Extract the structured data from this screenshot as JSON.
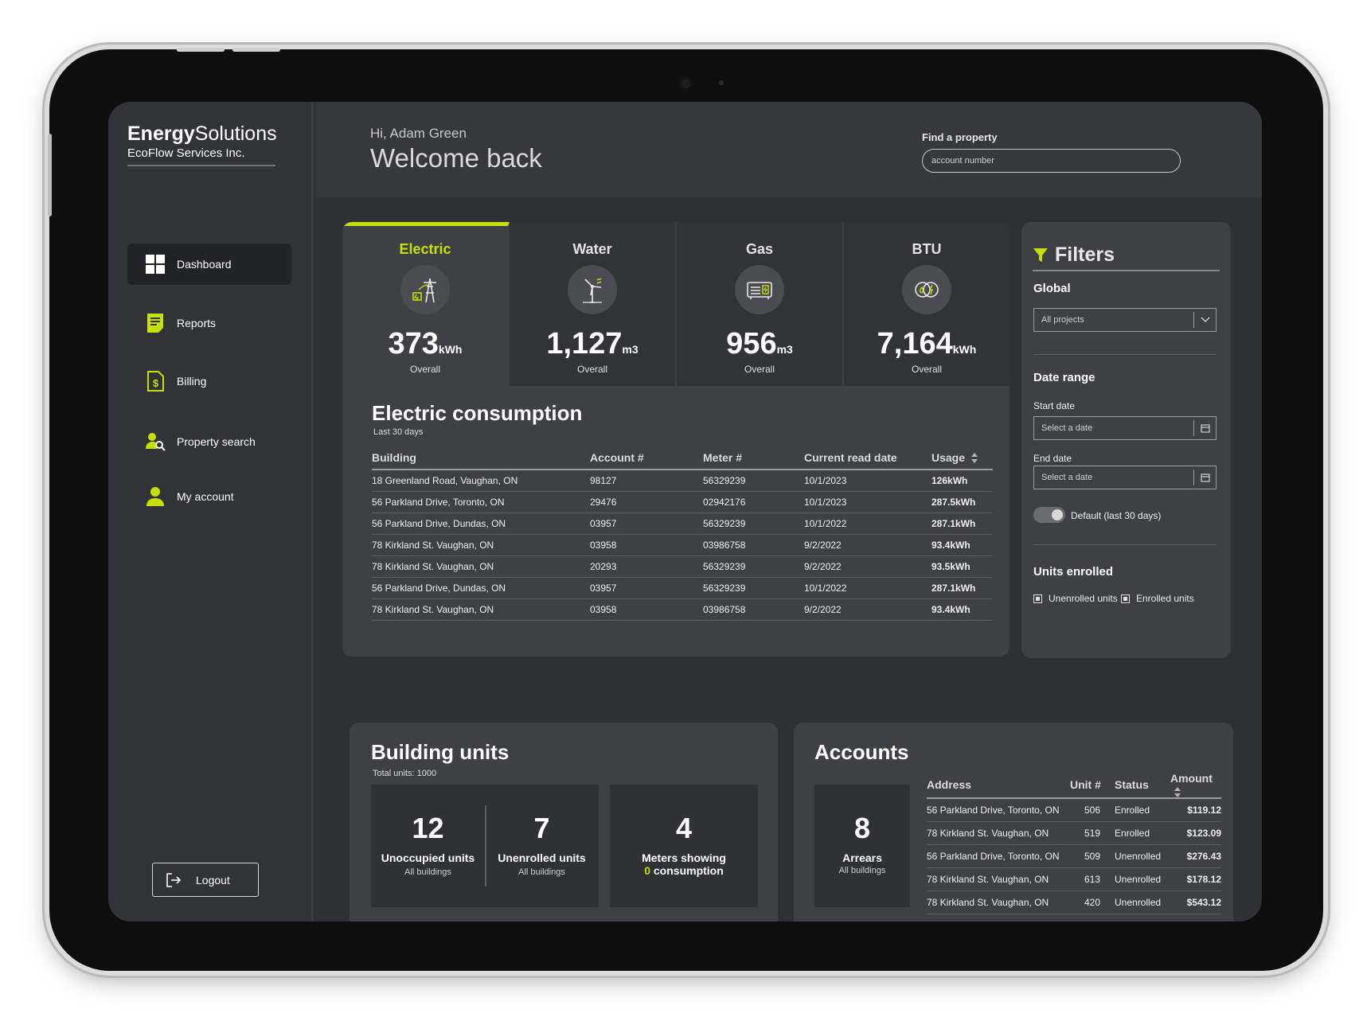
{
  "brand": {
    "name_bold": "Energy",
    "name_rest": "Solutions",
    "company": "EcoFlow Services Inc."
  },
  "nav": [
    {
      "label": "Dashboard",
      "icon": "dashboard-grid-icon"
    },
    {
      "label": "Reports",
      "icon": "report-document-icon"
    },
    {
      "label": "Billing",
      "icon": "billing-document-icon"
    },
    {
      "label": "Property search",
      "icon": "property-search-icon"
    },
    {
      "label": "My account",
      "icon": "user-account-icon"
    }
  ],
  "logout_label": "Logout",
  "header": {
    "greeting": "Hi, Adam Green",
    "welcome": "Welcome back",
    "find_label": "Find a property",
    "find_placeholder": "account number"
  },
  "utilities": [
    {
      "name": "Electric",
      "value": "373",
      "unit": "kWh",
      "caption": "Overall",
      "icon": "power-tower-icon"
    },
    {
      "name": "Water",
      "value": "1,127",
      "unit": "m3",
      "caption": "Overall",
      "icon": "water-turbine-icon"
    },
    {
      "name": "Gas",
      "value": "956",
      "unit": "m3",
      "caption": "Overall",
      "icon": "gas-meter-icon"
    },
    {
      "name": "BTU",
      "value": "7,164",
      "unit": "kWh",
      "caption": "Overall",
      "icon": "btu-energy-icon"
    }
  ],
  "consumption": {
    "title": "Electric consumption",
    "subtitle": "Last 30 days",
    "columns": [
      "Building",
      "Account #",
      "Meter #",
      "Current read date",
      "Usage"
    ],
    "rows": [
      [
        "18 Greenland Road, Vaughan, ON",
        "98127",
        "56329239",
        "10/1/2023",
        "126kWh"
      ],
      [
        "56 Parkland Drive, Toronto, ON",
        "29476",
        "02942176",
        "10/1/2023",
        "287.5kWh"
      ],
      [
        "56 Parkland Drive, Dundas, ON",
        "03957",
        "56329239",
        "10/1/2022",
        "287.1kWh"
      ],
      [
        "78 Kirkland St. Vaughan, ON",
        "03958",
        "03986758",
        "9/2/2022",
        "93.4kWh"
      ],
      [
        "78 Kirkland St. Vaughan, ON",
        "20293",
        "56329239",
        "9/2/2022",
        "93.5kWh"
      ],
      [
        "56 Parkland Drive, Dundas, ON",
        "03957",
        "56329239",
        "10/1/2022",
        "287.1kWh"
      ],
      [
        "78 Kirkland St. Vaughan, ON",
        "03958",
        "03986758",
        "9/2/2022",
        "93.4kWh"
      ]
    ]
  },
  "filters": {
    "title": "Filters",
    "global_label": "Global",
    "global_value": "All projects",
    "date_range_label": "Date range",
    "start_label": "Start date",
    "start_placeholder": "Select a date",
    "end_label": "End date",
    "end_placeholder": "Select a date",
    "default_toggle_label": "Default (last 30 days)",
    "default_toggle_on": true,
    "units_label": "Units enrolled",
    "unenrolled_label": "Unenrolled units",
    "enrolled_label": "Enrolled units"
  },
  "building_units": {
    "title": "Building units",
    "subtitle": "Total units: 1000",
    "stats": [
      {
        "num": "12",
        "label": "Unoccupied units",
        "sub": "All buildings"
      },
      {
        "num": "7",
        "label": "Unenrolled units",
        "sub": "All buildings"
      }
    ],
    "meters": {
      "num": "4",
      "label": "Meters showing",
      "highlight": "0",
      "label2": "consumption"
    }
  },
  "accounts": {
    "title": "Accounts",
    "arrears": {
      "num": "8",
      "label": "Arrears",
      "sub": "All buildings"
    },
    "columns": [
      "Address",
      "Unit #",
      "Status",
      "Amount"
    ],
    "rows": [
      [
        "56 Parkland Drive, Toronto, ON",
        "506",
        "Enrolled",
        "$119.12"
      ],
      [
        "78 Kirkland St. Vaughan, ON",
        "519",
        "Enrolled",
        "$123.09"
      ],
      [
        "56 Parkland Drive, Toronto, ON",
        "509",
        "Unenrolled",
        "$276.43"
      ],
      [
        "78 Kirkland St. Vaughan, ON",
        "613",
        "Unenrolled",
        "$178.12"
      ],
      [
        "78 Kirkland St. Vaughan, ON",
        "420",
        "Unenrolled",
        "$543.12"
      ]
    ]
  },
  "colors": {
    "accent": "#c6e000",
    "panel": "#3e4045",
    "background": "#2e3034"
  }
}
